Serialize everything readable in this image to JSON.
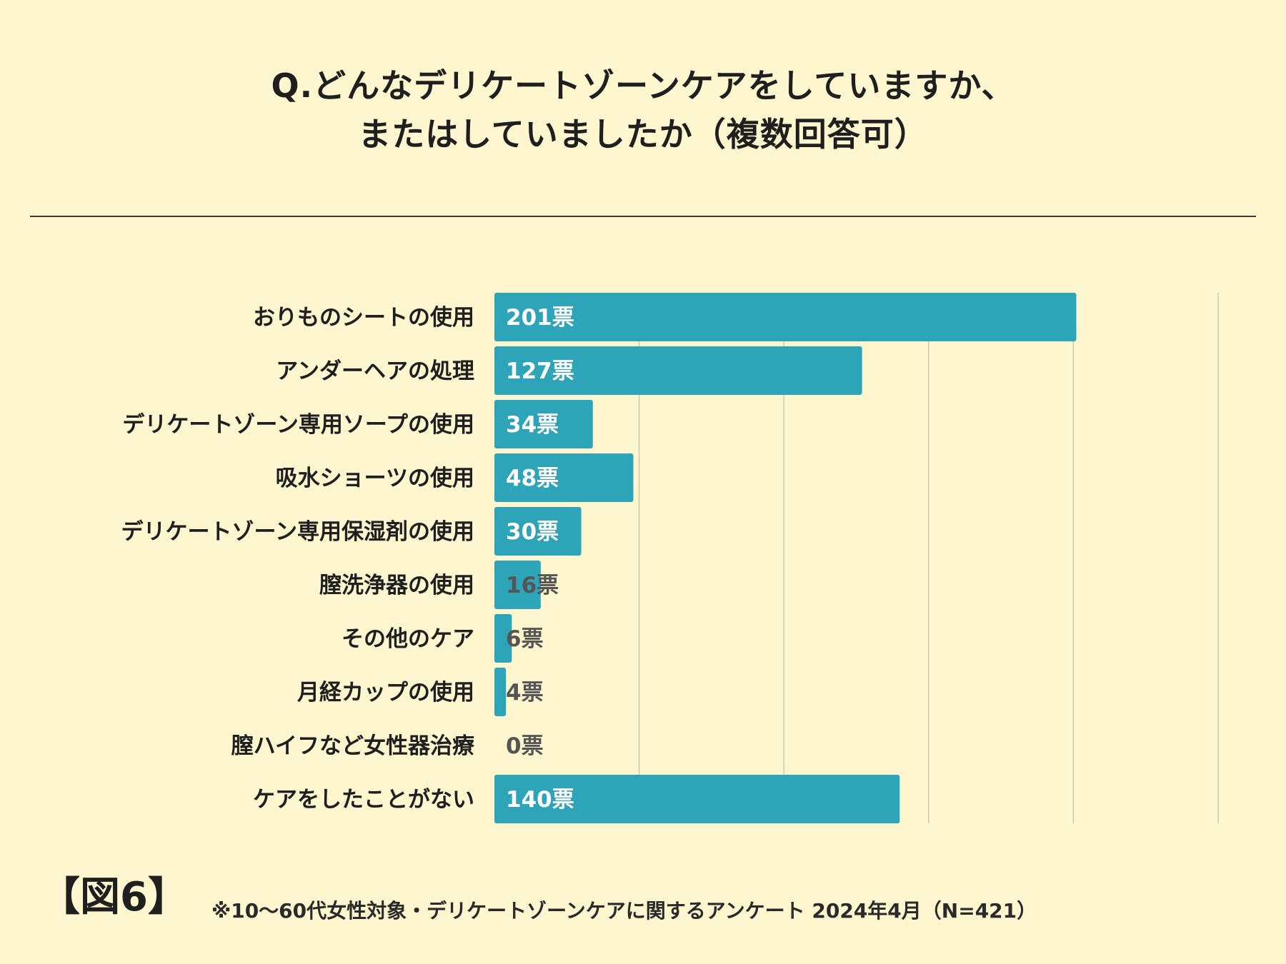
{
  "title": {
    "line1": "Q.どんなデリケートゾーンケアをしていますか、",
    "line2": "またはしていましたか（複数回答可）"
  },
  "figure_label": "【図6】",
  "footnote": "※10〜60代女性対象・デリケートゾーンケアに関するアンケート 2024年4月（N=421）",
  "colors": {
    "background": "#fdf6cf",
    "bar": "#2da4b8",
    "label_inside": "#ffffff",
    "label_outside": "#555555",
    "grid": "#cfcbb0"
  },
  "chart_data": {
    "type": "bar",
    "orientation": "horizontal",
    "categories": [
      "おりものシートの使用",
      "アンダーヘアの処理",
      "デリケートゾーン専用ソープの使用",
      "吸水ショーツの使用",
      "デリケートゾーン専用保湿剤の使用",
      "膣洗浄器の使用",
      "その他のケア",
      "月経カップの使用",
      "膣ハイフなど女性器治療",
      "ケアをしたことがない"
    ],
    "values": [
      201,
      127,
      34,
      48,
      30,
      16,
      6,
      4,
      0,
      140
    ],
    "value_labels": [
      "201票",
      "127票",
      "34票",
      "48票",
      "30票",
      "16票",
      "6票",
      "4票",
      "0票",
      "140票"
    ],
    "value_suffix": "票",
    "xlim": [
      0,
      250
    ],
    "grid_step": 50,
    "grid": true,
    "legend": "none"
  }
}
